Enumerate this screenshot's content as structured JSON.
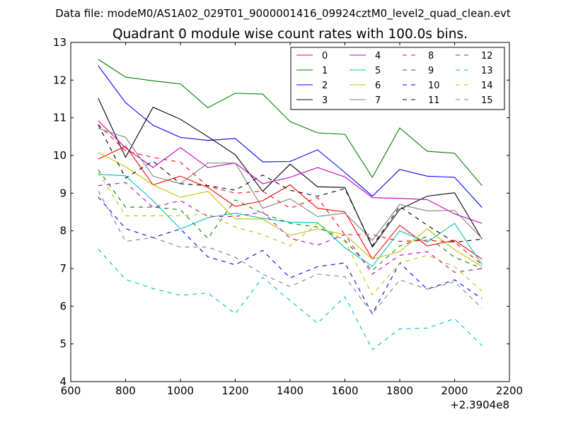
{
  "header": {
    "data_file_line": "Data file: modeM0/AS1A02_029T01_9000001416_09924cztM0_level2_quad_clean.evt"
  },
  "chart_data": {
    "type": "line",
    "title": "Quadrant 0 module wise count rates with 100.0s bins.",
    "xlabel": "",
    "ylabel": "",
    "x_offset_label": "+2.3904e8",
    "xlim": [
      600,
      2200
    ],
    "ylim": [
      4,
      13
    ],
    "x_ticks": [
      "600",
      "800",
      "1000",
      "1200",
      "1400",
      "1600",
      "1800",
      "2000",
      "2200"
    ],
    "y_ticks": [
      "4",
      "5",
      "6",
      "7",
      "8",
      "9",
      "10",
      "11",
      "12",
      "13"
    ],
    "grid": false,
    "legend_position": "top-right",
    "x": [
      700,
      800,
      900,
      1000,
      1100,
      1200,
      1300,
      1400,
      1500,
      1600,
      1700,
      1800,
      1900,
      2000,
      2100
    ],
    "series": [
      {
        "name": "0",
        "color": "#ff0000",
        "dash": "solid",
        "values": [
          9.9,
          10.25,
          9.22,
          9.45,
          9.15,
          8.65,
          8.8,
          9.22,
          8.6,
          8.5,
          7.25,
          8.15,
          7.6,
          7.75,
          7.25
        ]
      },
      {
        "name": "1",
        "color": "#008000",
        "dash": "solid",
        "values": [
          12.55,
          12.08,
          11.98,
          11.9,
          11.27,
          11.65,
          11.63,
          10.9,
          10.6,
          10.56,
          9.42,
          10.73,
          10.11,
          10.06,
          9.2
        ]
      },
      {
        "name": "2",
        "color": "#0000ff",
        "dash": "solid",
        "values": [
          12.38,
          11.4,
          10.8,
          10.48,
          10.4,
          10.45,
          9.83,
          9.84,
          10.15,
          9.55,
          8.92,
          9.63,
          9.45,
          9.42,
          8.62
        ]
      },
      {
        "name": "3",
        "color": "#000000",
        "dash": "solid",
        "values": [
          11.52,
          9.95,
          11.28,
          10.96,
          10.5,
          10.02,
          9.05,
          9.77,
          9.17,
          9.15,
          7.57,
          8.57,
          8.92,
          9.01,
          7.78
        ]
      },
      {
        "name": "4",
        "color": "#bf00bf",
        "dash": "solid",
        "values": [
          10.92,
          10.2,
          9.68,
          10.21,
          9.68,
          9.8,
          9.25,
          9.42,
          9.68,
          9.43,
          8.88,
          8.86,
          8.83,
          8.45,
          8.2
        ]
      },
      {
        "name": "5",
        "color": "#00bfbf",
        "dash": "solid",
        "values": [
          9.5,
          9.46,
          8.8,
          8.05,
          8.35,
          8.47,
          8.33,
          8.23,
          8.22,
          7.55,
          7.06,
          8.0,
          7.7,
          8.2,
          7.1
        ]
      },
      {
        "name": "6",
        "color": "#bfbf00",
        "dash": "solid",
        "values": [
          10.08,
          9.7,
          9.22,
          8.89,
          9.05,
          8.32,
          8.31,
          7.88,
          8.05,
          7.9,
          7.25,
          7.45,
          8.05,
          7.5,
          7.05
        ]
      },
      {
        "name": "7",
        "color": "#808080",
        "dash": "solid",
        "values": [
          10.72,
          10.48,
          9.45,
          9.25,
          9.8,
          9.8,
          8.6,
          8.85,
          8.38,
          8.47,
          7.75,
          8.7,
          8.53,
          8.54,
          7.8
        ]
      },
      {
        "name": "8",
        "color": "#ff0000",
        "dash": "dashed",
        "values": [
          10.82,
          10.12,
          9.95,
          9.82,
          9.18,
          9.0,
          9.05,
          8.6,
          8.88,
          7.9,
          7.9,
          7.72,
          7.75,
          7.7,
          7.1
        ]
      },
      {
        "name": "9",
        "color": "#008000",
        "dash": "dashed",
        "values": [
          9.62,
          8.63,
          8.63,
          8.56,
          7.8,
          8.82,
          8.46,
          8.2,
          8.1,
          7.75,
          6.95,
          7.6,
          7.85,
          7.3,
          7.0
        ]
      },
      {
        "name": "10",
        "color": "#0000ff",
        "dash": "dashed",
        "values": [
          8.9,
          8.06,
          7.82,
          8.05,
          7.31,
          7.1,
          7.48,
          6.75,
          7.05,
          7.15,
          5.8,
          7.15,
          6.45,
          6.7,
          6.2
        ]
      },
      {
        "name": "11",
        "color": "#000000",
        "dash": "dashed",
        "values": [
          10.82,
          9.4,
          9.85,
          9.25,
          9.2,
          9.08,
          9.48,
          9.08,
          8.92,
          9.12,
          7.6,
          8.65,
          8.15,
          7.7,
          7.78
        ]
      },
      {
        "name": "12",
        "color": "#bf00bf",
        "dash": "dashed",
        "values": [
          9.2,
          9.28,
          8.62,
          8.8,
          8.38,
          8.38,
          8.5,
          7.8,
          7.62,
          7.9,
          6.85,
          7.35,
          7.45,
          6.9,
          7.0
        ]
      },
      {
        "name": "13",
        "color": "#00bfbf",
        "dash": "dashed",
        "values": [
          7.52,
          6.71,
          6.47,
          6.29,
          6.35,
          5.8,
          6.77,
          6.15,
          5.55,
          6.25,
          4.85,
          5.4,
          5.42,
          5.67,
          4.95
        ]
      },
      {
        "name": "14",
        "color": "#bfbf00",
        "dash": "dashed",
        "values": [
          9.55,
          8.4,
          8.4,
          8.4,
          8.45,
          8.1,
          7.9,
          7.6,
          8.2,
          7.72,
          6.3,
          7.15,
          7.35,
          7.05,
          6.4
        ]
      },
      {
        "name": "15",
        "color": "#808080",
        "dash": "dashed",
        "values": [
          9.06,
          7.72,
          7.82,
          7.57,
          7.57,
          7.3,
          6.85,
          6.52,
          6.85,
          6.78,
          5.8,
          6.7,
          6.45,
          6.65,
          5.95
        ]
      }
    ]
  }
}
